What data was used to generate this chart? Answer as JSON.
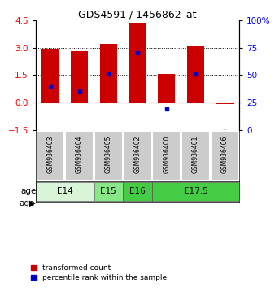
{
  "title": "GDS4591 / 1456862_at",
  "samples": [
    "GSM936403",
    "GSM936404",
    "GSM936405",
    "GSM936402",
    "GSM936400",
    "GSM936401",
    "GSM936406"
  ],
  "transformed_count": [
    2.95,
    2.82,
    3.2,
    4.35,
    1.58,
    3.07,
    -0.07
  ],
  "percentile_rank": [
    0.9,
    0.65,
    1.55,
    2.7,
    -0.35,
    1.55,
    -1.6
  ],
  "age_groups": [
    {
      "label": "E14",
      "start": 0,
      "end": 1,
      "color": "#d8f5d8"
    },
    {
      "label": "E15",
      "start": 2,
      "end": 2,
      "color": "#88e888"
    },
    {
      "label": "E16",
      "start": 3,
      "end": 3,
      "color": "#44cc44"
    },
    {
      "label": "E17.5",
      "start": 4,
      "end": 6,
      "color": "#44cc44"
    }
  ],
  "ylim": [
    -1.5,
    4.5
  ],
  "y2lim": [
    0,
    100
  ],
  "yticks": [
    -1.5,
    0,
    1.5,
    3,
    4.5
  ],
  "y2ticks": [
    0,
    25,
    50,
    75,
    100
  ],
  "bar_color": "#cc0000",
  "dot_color": "#0000cc",
  "legend_items": [
    {
      "label": "transformed count",
      "color": "#cc0000"
    },
    {
      "label": "percentile rank within the sample",
      "color": "#0000cc"
    }
  ]
}
